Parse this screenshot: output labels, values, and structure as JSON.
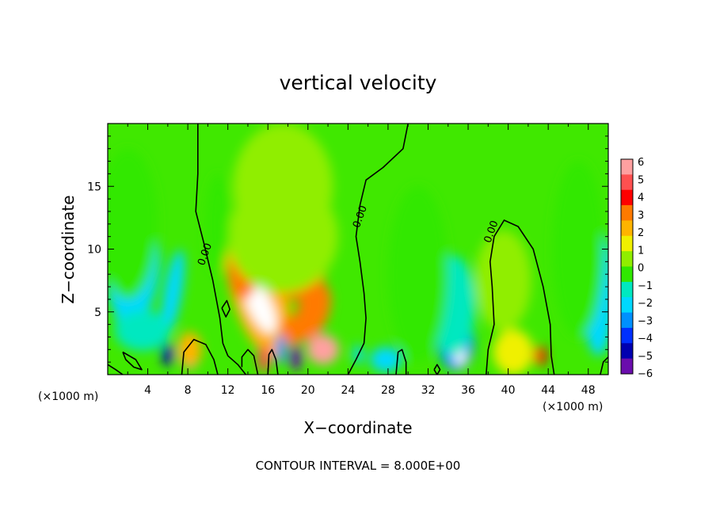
{
  "chart_data": {
    "type": "heatmap",
    "title": "vertical velocity",
    "xlabel": "X−coordinate",
    "ylabel": "Z−coordinate",
    "x_unit": "(×1000 m)",
    "y_unit": "(×1000 m)",
    "xlim": [
      0,
      50
    ],
    "ylim": [
      0,
      20
    ],
    "x_ticks": [
      "4",
      "8",
      "12",
      "16",
      "20",
      "24",
      "28",
      "32",
      "36",
      "40",
      "44",
      "48"
    ],
    "x_tick_values": [
      4,
      8,
      12,
      16,
      20,
      24,
      28,
      32,
      36,
      40,
      44,
      48
    ],
    "y_ticks": [
      "5",
      "10",
      "15"
    ],
    "y_tick_values": [
      5,
      10,
      15
    ],
    "colorbar": {
      "min": -6,
      "max": 6,
      "labels": [
        "6",
        "5",
        "4",
        "3",
        "2",
        "1",
        "0",
        "−1",
        "−2",
        "−3",
        "−4",
        "−5",
        "−6"
      ],
      "colors": [
        "#ffa0a0",
        "#ff5050",
        "#ff0000",
        "#ff7a00",
        "#ffb400",
        "#f0f000",
        "#90ee00",
        "#30e800",
        "#00e8c0",
        "#00d8ff",
        "#0090ff",
        "#0030ff",
        "#0000b0",
        "#6a0dad"
      ]
    },
    "contour_labels": [
      {
        "text": "0.00",
        "x": 10.0,
        "z": 9.5
      },
      {
        "text": "0.00",
        "x": 25.5,
        "z": 12.5
      },
      {
        "text": "0.00",
        "x": 38.6,
        "z": 11.3
      }
    ],
    "zero_contours": [
      [
        [
          9.0,
          20.0
        ],
        [
          9.0,
          16.0
        ],
        [
          8.8,
          13.0
        ],
        [
          9.6,
          10.5
        ],
        [
          10.5,
          7.5
        ],
        [
          11.2,
          4.5
        ],
        [
          11.5,
          2.5
        ],
        [
          12.0,
          1.5
        ],
        [
          13.0,
          0.8
        ],
        [
          13.8,
          0.0
        ]
      ],
      [
        [
          30.0,
          20.0
        ],
        [
          29.5,
          18.0
        ],
        [
          27.5,
          16.5
        ],
        [
          25.8,
          15.5
        ],
        [
          25.2,
          13.5
        ],
        [
          24.8,
          11.0
        ],
        [
          25.2,
          9.0
        ],
        [
          25.6,
          6.5
        ],
        [
          25.8,
          4.5
        ],
        [
          25.6,
          2.5
        ],
        [
          24.8,
          1.2
        ],
        [
          24.0,
          0.0
        ]
      ],
      [
        [
          37.8,
          0.0
        ],
        [
          38.0,
          2.0
        ],
        [
          38.6,
          4.0
        ],
        [
          38.4,
          7.0
        ],
        [
          38.2,
          9.0
        ],
        [
          38.6,
          11.0
        ],
        [
          39.6,
          12.3
        ],
        [
          41.0,
          11.8
        ],
        [
          42.5,
          10.0
        ],
        [
          43.5,
          7.0
        ],
        [
          44.2,
          4.0
        ],
        [
          44.3,
          1.5
        ],
        [
          44.6,
          0.0
        ]
      ],
      [
        [
          0.0,
          0.8
        ],
        [
          0.8,
          0.4
        ],
        [
          1.5,
          0.0
        ]
      ],
      [
        [
          1.5,
          1.8
        ],
        [
          2.8,
          1.2
        ],
        [
          3.4,
          0.4
        ],
        [
          2.6,
          0.6
        ],
        [
          1.8,
          1.2
        ],
        [
          1.5,
          1.8
        ]
      ],
      [
        [
          7.4,
          0.0
        ],
        [
          7.6,
          1.8
        ],
        [
          8.6,
          2.8
        ],
        [
          9.8,
          2.4
        ],
        [
          10.6,
          1.2
        ],
        [
          11.0,
          0.0
        ]
      ],
      [
        [
          11.4,
          5.3
        ],
        [
          11.9,
          5.9
        ],
        [
          12.2,
          5.2
        ],
        [
          11.8,
          4.6
        ],
        [
          11.4,
          5.3
        ]
      ],
      [
        [
          16.0,
          0.0
        ],
        [
          16.1,
          1.6
        ],
        [
          16.4,
          2.0
        ],
        [
          16.8,
          1.2
        ],
        [
          17.0,
          0.0
        ]
      ],
      [
        [
          15.0,
          0.0
        ],
        [
          14.6,
          1.5
        ],
        [
          14.0,
          2.0
        ],
        [
          13.4,
          1.4
        ],
        [
          13.4,
          0.6
        ]
      ],
      [
        [
          28.8,
          0.0
        ],
        [
          29.0,
          1.8
        ],
        [
          29.4,
          2.0
        ],
        [
          29.8,
          1.0
        ],
        [
          29.8,
          0.0
        ]
      ],
      [
        [
          32.6,
          0.4
        ],
        [
          32.9,
          0.8
        ],
        [
          33.2,
          0.4
        ],
        [
          32.9,
          0.0
        ],
        [
          32.6,
          0.4
        ]
      ],
      [
        [
          49.2,
          0.0
        ],
        [
          49.5,
          1.0
        ],
        [
          50.0,
          1.4
        ]
      ]
    ],
    "blobs": [
      {
        "x": 15.0,
        "z": 5.5,
        "rx": 2.0,
        "rz": 4.5,
        "value": 5.0,
        "rot": -20
      },
      {
        "x": 15.0,
        "z": 7.0,
        "rx": 2.8,
        "rz": 5.8,
        "value": 2.2,
        "rot": -15
      },
      {
        "x": 15.2,
        "z": 5.5,
        "rx": 1.2,
        "rz": 2.4,
        "value": 5.8,
        "rot": -25
      },
      {
        "x": 13.5,
        "z": 8.0,
        "rx": 1.4,
        "rz": 2.0,
        "value": 3.4,
        "rot": 0
      },
      {
        "x": 19.0,
        "z": 8.5,
        "rx": 2.8,
        "rz": 2.6,
        "value": 2.8,
        "rot": 0
      },
      {
        "x": 20.5,
        "z": 5.0,
        "rx": 1.6,
        "rz": 2.4,
        "value": 2.6,
        "rot": 20
      },
      {
        "x": 21.5,
        "z": 2.0,
        "rx": 1.6,
        "rz": 1.2,
        "value": 5.4,
        "rot": 0
      },
      {
        "x": 18.5,
        "z": 3.5,
        "rx": 1.2,
        "rz": 1.2,
        "value": 3.4,
        "rot": 0
      },
      {
        "x": 17.5,
        "z": 11.0,
        "rx": 5.5,
        "rz": 4.5,
        "value": 0.8,
        "rot": 0
      },
      {
        "x": 17.5,
        "z": 15.0,
        "rx": 5.0,
        "rz": 5.0,
        "value": 0.3,
        "rot": 0
      },
      {
        "x": 8.2,
        "z": 1.5,
        "rx": 0.8,
        "rz": 1.1,
        "value": 5.2,
        "rot": 0
      },
      {
        "x": 8.2,
        "z": 2.0,
        "rx": 1.2,
        "rz": 1.4,
        "value": 2.0,
        "rot": 0
      },
      {
        "x": 15.6,
        "z": 1.3,
        "rx": 0.6,
        "rz": 1.1,
        "value": 4.5,
        "rot": 0
      },
      {
        "x": 43.2,
        "z": 1.5,
        "rx": 0.6,
        "rz": 0.8,
        "value": 4.0,
        "rot": 0
      },
      {
        "x": 40.5,
        "z": 1.8,
        "rx": 2.0,
        "rz": 1.8,
        "value": 1.4,
        "rot": 0
      },
      {
        "x": 39.5,
        "z": 7.5,
        "rx": 2.8,
        "rz": 4.0,
        "value": 0.8,
        "rot": 0
      },
      {
        "x": 3.0,
        "z": 7.0,
        "rx": 1.8,
        "rz": 4.2,
        "value": -2.2,
        "rot": 15
      },
      {
        "x": 1.5,
        "z": 7.5,
        "rx": 1.5,
        "rz": 3.0,
        "value": -1.8,
        "rot": 0
      },
      {
        "x": 6.5,
        "z": 6.5,
        "rx": 0.9,
        "rz": 3.5,
        "value": -2.4,
        "rot": 10
      },
      {
        "x": 6.0,
        "z": 1.6,
        "rx": 0.6,
        "rz": 0.9,
        "value": -4.6,
        "rot": 0
      },
      {
        "x": 3.5,
        "z": 3.5,
        "rx": 2.8,
        "rz": 1.6,
        "value": -1.2,
        "rot": 0
      },
      {
        "x": 2.0,
        "z": 12.0,
        "rx": 3.0,
        "rz": 6.0,
        "value": -0.6,
        "rot": 0
      },
      {
        "x": 18.8,
        "z": 1.3,
        "rx": 0.6,
        "rz": 1.0,
        "value": -5.2,
        "rot": 0
      },
      {
        "x": 17.3,
        "z": 2.0,
        "rx": 0.5,
        "rz": 1.2,
        "value": -2.6,
        "rot": 0
      },
      {
        "x": 34.8,
        "z": 2.6,
        "rx": 1.8,
        "rz": 2.3,
        "value": -3.0,
        "rot": 0
      },
      {
        "x": 35.2,
        "z": 1.6,
        "rx": 0.55,
        "rz": 0.9,
        "value": -5.6,
        "rot": 0
      },
      {
        "x": 34.5,
        "z": 5.5,
        "rx": 2.2,
        "rz": 4.0,
        "value": -1.0,
        "rot": 0
      },
      {
        "x": 31.0,
        "z": 8.0,
        "rx": 3.0,
        "rz": 7.0,
        "value": -0.6,
        "rot": 0
      },
      {
        "x": 27.8,
        "z": 1.2,
        "rx": 1.6,
        "rz": 1.0,
        "value": -1.8,
        "rot": 0
      },
      {
        "x": 25.0,
        "z": 1.6,
        "rx": 0.5,
        "rz": 0.8,
        "value": -2.4,
        "rot": 0
      },
      {
        "x": 49.0,
        "z": 6.5,
        "rx": 1.6,
        "rz": 5.0,
        "value": -1.8,
        "rot": 0
      },
      {
        "x": 47.0,
        "z": 10.0,
        "rx": 2.6,
        "rz": 7.0,
        "value": -0.7,
        "rot": 0
      },
      {
        "x": 11.0,
        "z": 12.0,
        "rx": 1.2,
        "rz": 4.0,
        "value": -0.3,
        "rot": 0
      }
    ]
  },
  "footer": {
    "contour_interval": "CONTOUR INTERVAL = 8.000E+00"
  }
}
